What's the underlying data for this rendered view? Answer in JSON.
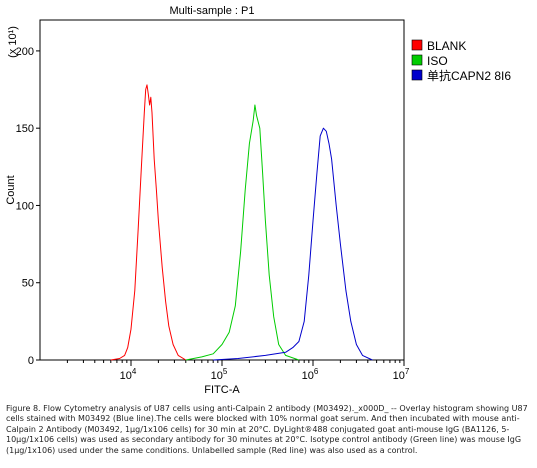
{
  "chart_data": {
    "type": "line",
    "title": "Multi-sample : P1",
    "xlabel": "FITC-A",
    "ylabel": "Count",
    "y_multiplier": "(x 10¹)",
    "xscale": "log",
    "xlim": [
      1000,
      10000000
    ],
    "ylim": [
      0,
      220
    ],
    "x_ticks": [
      {
        "value": 10000,
        "base": "10",
        "exp": "4"
      },
      {
        "value": 100000,
        "base": "10",
        "exp": "5"
      },
      {
        "value": 1000000,
        "base": "10",
        "exp": "6"
      },
      {
        "value": 10000000,
        "base": "10",
        "exp": "7"
      }
    ],
    "y_ticks": [
      0,
      50,
      100,
      150,
      200
    ],
    "legend_position": "top-right",
    "series": [
      {
        "name": "BLANK",
        "color": "#ff0000",
        "points": [
          [
            6000,
            0
          ],
          [
            7500,
            1
          ],
          [
            8500,
            3
          ],
          [
            9200,
            8
          ],
          [
            10000,
            20
          ],
          [
            11000,
            45
          ],
          [
            12000,
            85
          ],
          [
            13000,
            125
          ],
          [
            14000,
            160
          ],
          [
            14500,
            175
          ],
          [
            15000,
            178
          ],
          [
            15500,
            172
          ],
          [
            16000,
            165
          ],
          [
            16500,
            170
          ],
          [
            17000,
            160
          ],
          [
            18000,
            130
          ],
          [
            19000,
            110
          ],
          [
            20000,
            90
          ],
          [
            22000,
            60
          ],
          [
            24000,
            38
          ],
          [
            26000,
            22
          ],
          [
            29000,
            10
          ],
          [
            33000,
            3
          ],
          [
            40000,
            0
          ]
        ]
      },
      {
        "name": "ISO",
        "color": "#00cc00",
        "points": [
          [
            40000,
            0
          ],
          [
            60000,
            2
          ],
          [
            80000,
            4
          ],
          [
            100000,
            10
          ],
          [
            120000,
            18
          ],
          [
            140000,
            35
          ],
          [
            160000,
            70
          ],
          [
            180000,
            110
          ],
          [
            200000,
            140
          ],
          [
            220000,
            155
          ],
          [
            230000,
            165
          ],
          [
            240000,
            158
          ],
          [
            260000,
            150
          ],
          [
            280000,
            120
          ],
          [
            300000,
            90
          ],
          [
            330000,
            55
          ],
          [
            370000,
            28
          ],
          [
            420000,
            10
          ],
          [
            500000,
            3
          ],
          [
            700000,
            0
          ]
        ]
      },
      {
        "name": "单抗CAPN2 8I6",
        "color": "#0000cc",
        "points": [
          [
            80000,
            0
          ],
          [
            150000,
            1
          ],
          [
            300000,
            3
          ],
          [
            500000,
            5
          ],
          [
            600000,
            8
          ],
          [
            700000,
            12
          ],
          [
            800000,
            25
          ],
          [
            900000,
            55
          ],
          [
            1000000,
            90
          ],
          [
            1100000,
            120
          ],
          [
            1200000,
            145
          ],
          [
            1300000,
            150
          ],
          [
            1400000,
            148
          ],
          [
            1500000,
            140
          ],
          [
            1600000,
            130
          ],
          [
            1800000,
            100
          ],
          [
            2000000,
            75
          ],
          [
            2300000,
            45
          ],
          [
            2600000,
            25
          ],
          [
            3000000,
            10
          ],
          [
            3500000,
            3
          ],
          [
            4500000,
            0
          ]
        ]
      }
    ]
  },
  "caption": "Figure 8. Flow Cytometry analysis of U87 cells using anti-Calpain 2 antibody (M03492)._x000D_ -- Overlay histogram showing U87 cells stained with M03492 (Blue line).The cells were blocked with 10% normal goat serum. And then incubated with mouse anti-Calpain 2 Antibody (M03492, 1μg/1x106 cells) for 30 min at 20°C. DyLight®488 conjugated goat anti-mouse IgG (BA1126, 5-10μg/1x106 cells) was used as secondary antibody for 30 minutes at 20°C. Isotype control antibody (Green line) was mouse IgG (1μg/1x106) used under the same conditions. Unlabelled sample (Red line) was also used as a control."
}
